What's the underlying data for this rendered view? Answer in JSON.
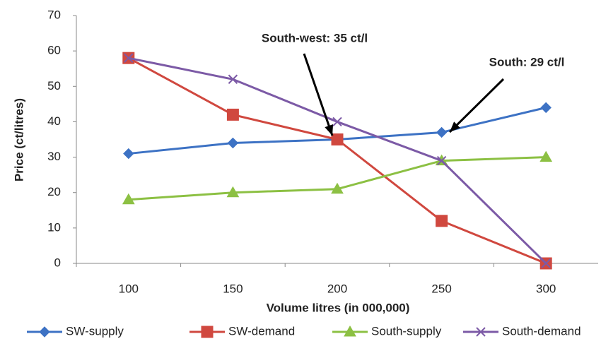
{
  "chart_data": {
    "type": "line",
    "categories": [
      "100",
      "150",
      "200",
      "250",
      "300"
    ],
    "series": [
      {
        "name": "SW-supply",
        "color": "#3d72c4",
        "marker": "diamond",
        "values": [
          31,
          34,
          35,
          37,
          44
        ]
      },
      {
        "name": "SW-demand",
        "color": "#d0483f",
        "marker": "square",
        "values": [
          58,
          42,
          35,
          12,
          0
        ]
      },
      {
        "name": "South-supply",
        "color": "#8cc043",
        "marker": "triangle",
        "values": [
          18,
          20,
          21,
          29,
          30
        ]
      },
      {
        "name": "South-demand",
        "color": "#7c5aa6",
        "marker": "x",
        "values": [
          58,
          52,
          40,
          29,
          0
        ]
      }
    ],
    "ylim": [
      0,
      70
    ],
    "yticks": [
      0,
      10,
      20,
      30,
      40,
      50,
      60,
      70
    ],
    "ylabel": "Price (ct/litres)",
    "xlabel": "Volume litres (in 000,000)",
    "annotations": [
      "South-west: 35 ct/l",
      "South: 29 ct/l"
    ],
    "legend": "bottom",
    "grid": false
  }
}
